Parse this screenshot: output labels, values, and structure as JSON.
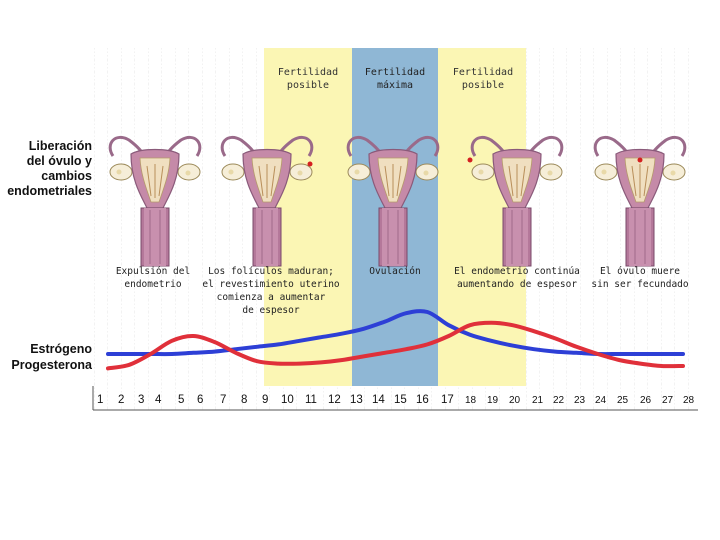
{
  "left_labels": {
    "release_line1": "Liberación",
    "release_line2": "del óvulo y",
    "release_line3": "cambios",
    "release_line4": "endometriales",
    "estrogen": "Estrógeno",
    "progesterone": "Progesterona"
  },
  "zones": {
    "fertile_1_line1": "Fertilidad",
    "fertile_1_line2": "posible",
    "max_line1": "Fertilidad",
    "max_line2": "máxima",
    "fertile_2_line1": "Fertilidad",
    "fertile_2_line2": "posible"
  },
  "captions": {
    "c1_line1": "Expulsión del",
    "c1_line2": "endometrio",
    "c2_line1": "Los folículos maduran;",
    "c2_line2": "el revestimiento uterino",
    "c2_line3": "comienza a aumentar",
    "c2_line4": "de espesor",
    "c3_line1": "Ovulación",
    "c4_line1": "El endometrio continúa",
    "c4_line2": "aumentando de espesor",
    "c5_line1": "El óvulo muere",
    "c5_line2": "sin ser fecundado"
  },
  "days": [
    "1",
    "2",
    "3",
    "4",
    "5",
    "6",
    "7",
    "8",
    "9",
    "10",
    "11",
    "12",
    "13",
    "14",
    "15",
    "16",
    "17",
    "18",
    "19",
    "20",
    "21",
    "22",
    "23",
    "24",
    "25",
    "26",
    "27",
    "28"
  ],
  "colors": {
    "fertile_zone": "#fbf6b4",
    "max_zone": "#8fb7d5",
    "estrogen": "#2d3fd6",
    "progesterone": "#e0303a"
  },
  "chart_data": {
    "type": "line",
    "xlabel": "",
    "ylabel": "",
    "x": [
      1,
      2,
      3,
      4,
      5,
      6,
      7,
      8,
      9,
      10,
      11,
      12,
      13,
      14,
      15,
      16,
      17,
      18,
      19,
      20,
      21,
      22,
      23,
      24,
      25,
      26,
      27,
      28
    ],
    "series": [
      {
        "name": "Estrógeno",
        "values": [
          1.5,
          1.5,
          1.5,
          1.5,
          1.6,
          1.7,
          1.9,
          2.1,
          2.3,
          2.6,
          2.9,
          3.2,
          3.6,
          4.2,
          4.9,
          5.0,
          3.9,
          3.1,
          2.6,
          2.2,
          1.9,
          1.7,
          1.6,
          1.5,
          1.5,
          1.5,
          1.5,
          1.5
        ]
      },
      {
        "name": "Progesterona",
        "values": [
          0.3,
          0.6,
          1.5,
          2.6,
          3.0,
          2.5,
          1.6,
          0.9,
          0.7,
          0.7,
          0.8,
          1.0,
          1.3,
          1.6,
          1.9,
          2.3,
          3.0,
          3.9,
          4.1,
          3.9,
          3.4,
          2.8,
          2.1,
          1.5,
          1.0,
          0.7,
          0.5,
          0.5
        ]
      }
    ],
    "ylim": [
      0,
      6
    ]
  }
}
